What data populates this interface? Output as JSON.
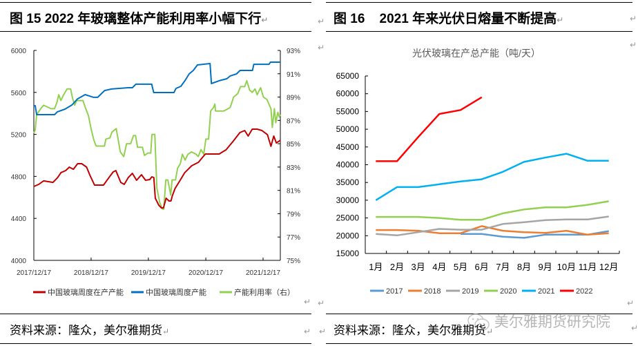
{
  "left_panel": {
    "title": "图 15 2022 年玻璃整体产能利用率小幅下行",
    "source": "资料来源：隆众，美尔雅期货"
  },
  "right_panel": {
    "title": "图 16    2021 年来光伏日熔量不断提高",
    "source": "资料来源：隆众，美尔雅期货"
  },
  "watermark": "美尔雅期货研究院",
  "watermark_icon": "wechat-icon",
  "paragraph_mark": "↵",
  "chart_data": [
    {
      "type": "line",
      "title": "",
      "xlim": [
        "2017-12-17",
        "2022-04-06"
      ],
      "x_ticks": [
        "2017/12/17",
        "2018/12/17",
        "2019/12/17",
        "2020/12/17",
        "2021/12/17"
      ],
      "x_tick_dates": [
        "2017-12-17",
        "2018-12-17",
        "2019-12-17",
        "2020-12-17",
        "2021-12-17"
      ],
      "ylim_left": [
        4000,
        6000
      ],
      "y_ticks_left": [
        "4000",
        "4400",
        "4800",
        "5200",
        "5600",
        "6000"
      ],
      "ylim_right": [
        75,
        93
      ],
      "y_ticks_right": [
        "75%",
        "77%",
        "79%",
        "81%",
        "83%",
        "85%",
        "87%",
        "89%",
        "91%",
        "93%"
      ],
      "grid": false,
      "legend_position": "bottom",
      "series": [
        {
          "name": "中国玻璃周度在产产能",
          "axis": "left",
          "color": "#c00000",
          "points": [
            [
              "2017-12-17",
              4704
            ],
            [
              "2018-01-17",
              4724
            ],
            [
              "2018-02-17",
              4757
            ],
            [
              "2018-04-18",
              4743
            ],
            [
              "2018-05-18",
              4789
            ],
            [
              "2018-06-08",
              4836
            ],
            [
              "2018-07-08",
              4855
            ],
            [
              "2018-07-31",
              4888
            ],
            [
              "2018-08-26",
              4868
            ],
            [
              "2018-09-22",
              4921
            ],
            [
              "2018-10-18",
              4921
            ],
            [
              "2018-11-18",
              4888
            ],
            [
              "2018-12-08",
              4816
            ],
            [
              "2019-01-08",
              4717
            ],
            [
              "2019-03-06",
              4717
            ],
            [
              "2019-04-10",
              4789
            ],
            [
              "2019-05-06",
              4842
            ],
            [
              "2019-05-24",
              4855
            ],
            [
              "2019-06-24",
              4743
            ],
            [
              "2019-07-16",
              4724
            ],
            [
              "2019-08-11",
              4789
            ],
            [
              "2019-09-06",
              4829
            ],
            [
              "2019-10-03",
              4763
            ],
            [
              "2019-11-03",
              4816
            ],
            [
              "2019-11-29",
              4763
            ],
            [
              "2019-12-26",
              4770
            ],
            [
              "2020-01-08",
              4796
            ],
            [
              "2020-01-21",
              4789
            ],
            [
              "2020-01-30",
              4592
            ],
            [
              "2020-02-21",
              4526
            ],
            [
              "2020-03-09",
              4500
            ],
            [
              "2020-03-22",
              4500
            ],
            [
              "2020-04-08",
              4592
            ],
            [
              "2020-04-26",
              4566
            ],
            [
              "2020-05-09",
              4566
            ],
            [
              "2020-05-18",
              4618
            ],
            [
              "2020-06-04",
              4684
            ],
            [
              "2020-07-01",
              4750
            ],
            [
              "2020-08-05",
              4836
            ],
            [
              "2020-09-18",
              4901
            ],
            [
              "2020-10-31",
              4934
            ],
            [
              "2020-12-14",
              5013
            ],
            [
              "2021-01-27",
              5013
            ],
            [
              "2021-03-12",
              5013
            ],
            [
              "2021-04-25",
              5053
            ],
            [
              "2021-06-08",
              5132
            ],
            [
              "2021-07-22",
              5217
            ],
            [
              "2021-08-22",
              5237
            ],
            [
              "2021-09-13",
              5184
            ],
            [
              "2021-10-09",
              5250
            ],
            [
              "2021-11-09",
              5250
            ],
            [
              "2021-12-10",
              5237
            ],
            [
              "2022-01-14",
              5197
            ],
            [
              "2022-02-05",
              5086
            ],
            [
              "2022-02-23",
              5184
            ],
            [
              "2022-03-12",
              5118
            ],
            [
              "2022-04-06",
              5145
            ]
          ]
        },
        {
          "name": "中国玻璃周度产能",
          "axis": "left",
          "color": "#0070c0",
          "points": [
            [
              "2017-12-17",
              5474
            ],
            [
              "2017-12-26",
              5474
            ],
            [
              "2018-01-04",
              5388
            ],
            [
              "2018-04-28",
              5388
            ],
            [
              "2018-05-16",
              5415
            ],
            [
              "2018-07-04",
              5441
            ],
            [
              "2018-08-17",
              5480
            ],
            [
              "2018-09-22",
              5539
            ],
            [
              "2018-11-09",
              5579
            ],
            [
              "2019-01-01",
              5553
            ],
            [
              "2019-01-28",
              5553
            ],
            [
              "2019-03-13",
              5618
            ],
            [
              "2019-04-26",
              5632
            ],
            [
              "2019-08-10",
              5645
            ],
            [
              "2019-09-06",
              5645
            ],
            [
              "2019-09-28",
              5678
            ],
            [
              "2020-01-07",
              5678
            ],
            [
              "2020-01-20",
              5599
            ],
            [
              "2020-05-28",
              5599
            ],
            [
              "2020-06-10",
              5638
            ],
            [
              "2020-07-11",
              5658
            ],
            [
              "2020-08-06",
              5711
            ],
            [
              "2020-09-02",
              5776
            ],
            [
              "2020-09-28",
              5809
            ],
            [
              "2020-10-25",
              5862
            ],
            [
              "2021-01-13",
              5875
            ],
            [
              "2021-01-22",
              5684
            ],
            [
              "2021-03-12",
              5711
            ],
            [
              "2021-04-30",
              5730
            ],
            [
              "2021-05-22",
              5757
            ],
            [
              "2021-07-01",
              5776
            ],
            [
              "2021-07-23",
              5809
            ],
            [
              "2021-10-10",
              5809
            ],
            [
              "2021-10-19",
              5868
            ],
            [
              "2022-01-24",
              5868
            ],
            [
              "2022-02-02",
              5888
            ],
            [
              "2022-04-06",
              5888
            ]
          ]
        },
        {
          "name": "产能利用率（右）",
          "axis": "right",
          "color": "#92d050",
          "points": [
            [
              "2017-12-17",
              85.9
            ],
            [
              "2017-12-26",
              86.2
            ],
            [
              "2018-01-04",
              87.5
            ],
            [
              "2018-01-30",
              88.0
            ],
            [
              "2018-02-17",
              88.3
            ],
            [
              "2018-04-06",
              88.0
            ],
            [
              "2018-04-28",
              88.0
            ],
            [
              "2018-05-12",
              88.5
            ],
            [
              "2018-05-25",
              89.2
            ],
            [
              "2018-06-07",
              88.7
            ],
            [
              "2018-06-25",
              89.2
            ],
            [
              "2018-07-17",
              89.7
            ],
            [
              "2018-08-08",
              89.7
            ],
            [
              "2018-08-21",
              88.9
            ],
            [
              "2018-09-03",
              88.3
            ],
            [
              "2018-09-16",
              88.7
            ],
            [
              "2018-10-26",
              88.7
            ],
            [
              "2018-11-13",
              88.0
            ],
            [
              "2018-11-30",
              87.4
            ],
            [
              "2018-12-18",
              86.2
            ],
            [
              "2019-01-04",
              85.3
            ],
            [
              "2019-01-18",
              84.8
            ],
            [
              "2019-03-12",
              84.8
            ],
            [
              "2019-03-21",
              85.4
            ],
            [
              "2019-04-16",
              85.5
            ],
            [
              "2019-04-29",
              86.0
            ],
            [
              "2019-05-26",
              86.3
            ],
            [
              "2019-06-08",
              85.3
            ],
            [
              "2019-06-21",
              84.3
            ],
            [
              "2019-07-13",
              83.9
            ],
            [
              "2019-07-31",
              85.0
            ],
            [
              "2019-08-26",
              85.0
            ],
            [
              "2019-09-13",
              85.7
            ],
            [
              "2019-09-26",
              85.7
            ],
            [
              "2019-10-09",
              84.7
            ],
            [
              "2019-11-09",
              84.7
            ],
            [
              "2019-11-22",
              84.0
            ],
            [
              "2019-12-14",
              84.2
            ],
            [
              "2020-01-01",
              84.2
            ],
            [
              "2020-01-09",
              85.8
            ],
            [
              "2020-01-27",
              85.8
            ],
            [
              "2020-02-09",
              81.2
            ],
            [
              "2020-02-27",
              80.0
            ],
            [
              "2020-03-15",
              79.4
            ],
            [
              "2020-03-24",
              79.4
            ],
            [
              "2020-04-06",
              81.9
            ],
            [
              "2020-04-19",
              81.9
            ],
            [
              "2020-05-07",
              80.6
            ],
            [
              "2020-05-16",
              81.9
            ],
            [
              "2020-06-07",
              81.9
            ],
            [
              "2020-06-20",
              82.9
            ],
            [
              "2020-07-08",
              83.3
            ],
            [
              "2020-07-21",
              84.1
            ],
            [
              "2020-08-07",
              83.6
            ],
            [
              "2020-08-25",
              84.1
            ],
            [
              "2020-09-16",
              84.3
            ],
            [
              "2020-10-16",
              84.1
            ],
            [
              "2020-10-30",
              83.9
            ],
            [
              "2020-11-16",
              84.5
            ],
            [
              "2020-12-04",
              84.1
            ],
            [
              "2020-12-17",
              85.4
            ],
            [
              "2021-01-04",
              85.4
            ],
            [
              "2021-01-17",
              87.8
            ],
            [
              "2021-02-04",
              88.1
            ],
            [
              "2021-02-13",
              88.4
            ],
            [
              "2021-02-17",
              87.8
            ],
            [
              "2021-04-11",
              87.8
            ],
            [
              "2021-05-21",
              88.1
            ],
            [
              "2021-06-12",
              89.0
            ],
            [
              "2021-07-09",
              89.3
            ],
            [
              "2021-07-26",
              89.9
            ],
            [
              "2021-08-22",
              89.9
            ],
            [
              "2021-09-04",
              90.4
            ],
            [
              "2021-09-22",
              89.6
            ],
            [
              "2021-10-09",
              89.4
            ],
            [
              "2021-10-27",
              89.7
            ],
            [
              "2021-11-09",
              89.2
            ],
            [
              "2021-12-01",
              89.8
            ],
            [
              "2021-12-19",
              89.0
            ],
            [
              "2022-01-10",
              88.8
            ],
            [
              "2022-02-05",
              88.0
            ],
            [
              "2022-02-14",
              86.4
            ],
            [
              "2022-02-27",
              88.0
            ],
            [
              "2022-03-08",
              86.8
            ],
            [
              "2022-03-21",
              87.7
            ],
            [
              "2022-03-30",
              87.3
            ],
            [
              "2022-04-06",
              87.5
            ]
          ]
        }
      ]
    },
    {
      "type": "line",
      "title": "光伏玻璃在产总产能（吨/天）",
      "categories": [
        "1月",
        "2月",
        "3月",
        "4月",
        "5月",
        "6月",
        "7月",
        "8月",
        "9月",
        "10月",
        "11月",
        "12月"
      ],
      "ylim": [
        15000,
        65000
      ],
      "y_ticks": [
        "15000",
        "20000",
        "25000",
        "30000",
        "35000",
        "40000",
        "45000",
        "50000",
        "55000",
        "60000",
        "65000"
      ],
      "grid": false,
      "legend_position": "bottom",
      "series": [
        {
          "name": "2017",
          "color": "#5b9bd5",
          "values": [
            null,
            null,
            null,
            null,
            20500,
            20500,
            19700,
            19400,
            20300,
            20300,
            20300,
            21300
          ]
        },
        {
          "name": "2018",
          "color": "#ed7d31",
          "values": [
            21600,
            21600,
            21400,
            20700,
            20700,
            22700,
            21400,
            21000,
            20800,
            21400,
            20300,
            20700
          ]
        },
        {
          "name": "2019",
          "color": "#a5a5a5",
          "values": [
            20500,
            20100,
            21000,
            21900,
            21700,
            21700,
            23300,
            23800,
            24400,
            24600,
            24600,
            25400
          ]
        },
        {
          "name": "2020",
          "color": "#92d050",
          "values": [
            25300,
            25300,
            25300,
            25000,
            24500,
            24500,
            26300,
            27400,
            28000,
            28000,
            28700,
            29700
          ]
        },
        {
          "name": "2021",
          "color": "#00b0f0",
          "values": [
            30000,
            33700,
            33700,
            34500,
            35300,
            35900,
            38000,
            40800,
            42000,
            43100,
            41100,
            41100
          ]
        },
        {
          "name": "2022",
          "color": "#ff0000",
          "values": [
            41000,
            41000,
            47800,
            54300,
            55400,
            59000,
            null,
            null,
            null,
            null,
            null,
            null
          ]
        }
      ]
    }
  ]
}
